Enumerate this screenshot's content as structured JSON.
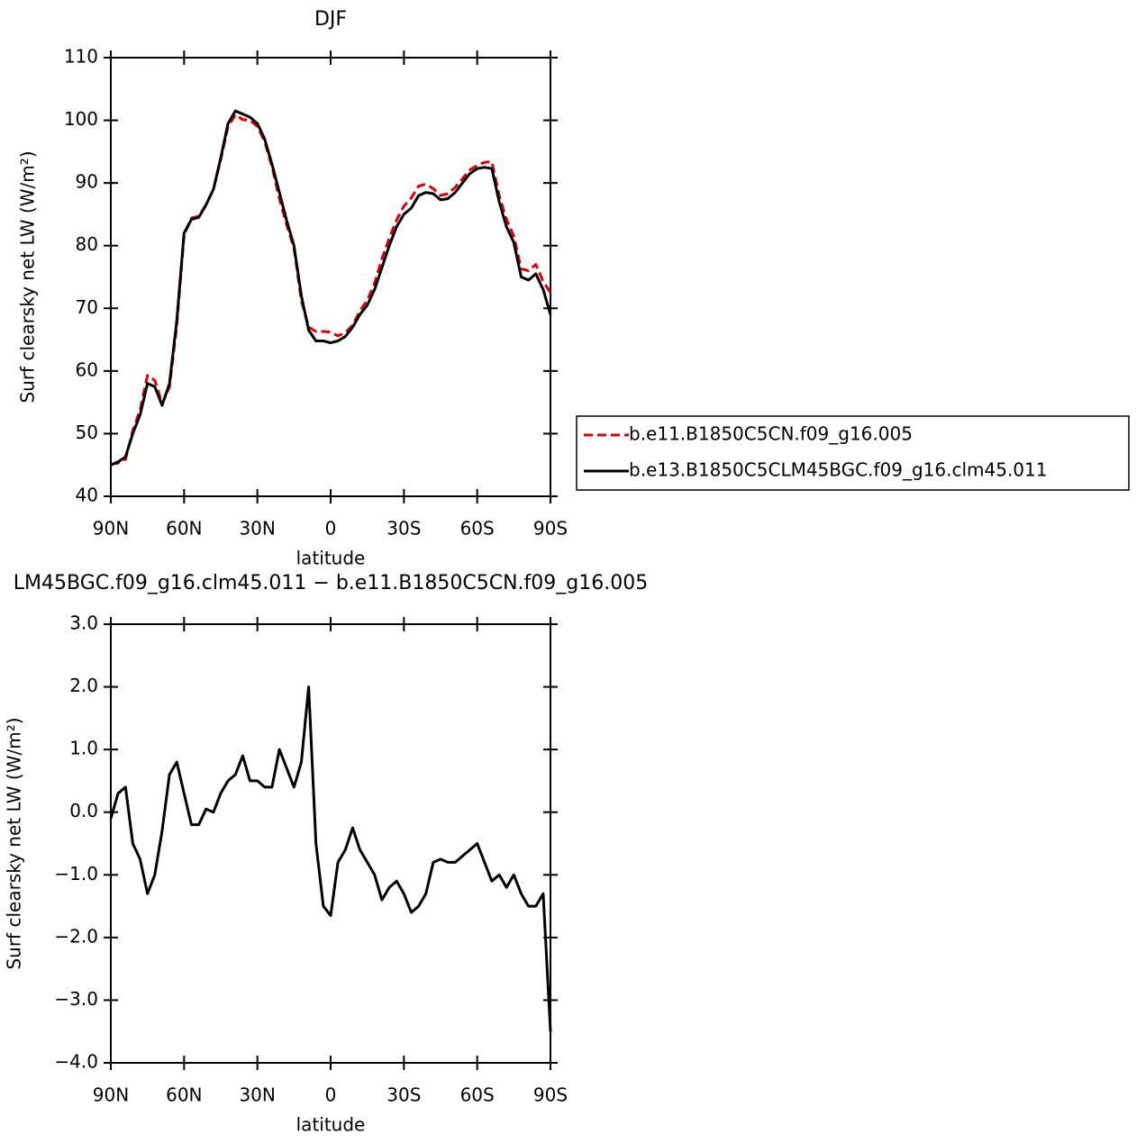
{
  "chart_data": [
    {
      "type": "line",
      "title": "DJF",
      "xlabel": "latitude",
      "ylabel": "Surf clearsky net LW (W/m²)",
      "x": [
        90,
        87,
        84,
        81,
        78,
        75,
        72,
        69,
        66,
        63,
        60,
        57,
        54,
        51,
        48,
        45,
        42,
        39,
        36,
        33,
        30,
        27,
        24,
        21,
        18,
        15,
        12,
        9,
        6,
        3,
        0,
        -3,
        -6,
        -9,
        -12,
        -15,
        -18,
        -21,
        -24,
        -27,
        -30,
        -33,
        -36,
        -39,
        -42,
        -45,
        -48,
        -51,
        -54,
        -57,
        -60,
        -63,
        -66,
        -69,
        -72,
        -75,
        -78,
        -81,
        -84,
        -87,
        -90
      ],
      "series": [
        {
          "name": "b.e11.B1850C5CN.f09_g16.005",
          "color": "#e00000",
          "dashed": true,
          "values": [
            45.1,
            45.3,
            45.9,
            50.5,
            53.8,
            59.3,
            58.5,
            54.8,
            57.4,
            67.2,
            81.7,
            84.4,
            84.7,
            86.5,
            89,
            93.7,
            99,
            100.9,
            100.1,
            100,
            99,
            96.6,
            92.6,
            87.5,
            83.3,
            79.6,
            71.2,
            67,
            66.3,
            66.3,
            66.2,
            65.6,
            66.1,
            67.3,
            69.6,
            71.3,
            74,
            77.9,
            81.2,
            84.1,
            86.3,
            87.6,
            89.5,
            89.8,
            89.1,
            88,
            88.3,
            89.3,
            90.7,
            92.1,
            92.8,
            93.3,
            93.4,
            88,
            84.2,
            81.5,
            76.3,
            76,
            77,
            74.3,
            72.5
          ]
        },
        {
          "name": "b.e13.B1850C5CLM45BGC.f09_g16.clm45.011",
          "color": "#000000",
          "dashed": false,
          "values": [
            45,
            45.5,
            46.3,
            50,
            53,
            58,
            57.5,
            54.5,
            58,
            68,
            82,
            84.2,
            84.5,
            86.5,
            89,
            94,
            99.5,
            101.5,
            101,
            100.5,
            99.5,
            97,
            93,
            88.5,
            84,
            80,
            72,
            66.5,
            64.8,
            64.8,
            64.5,
            64.8,
            65.5,
            67,
            69,
            70.5,
            73,
            76.5,
            80,
            83,
            85,
            86,
            88,
            88.5,
            88.3,
            87.3,
            87.5,
            88.5,
            90,
            91.5,
            92.3,
            92.5,
            92.3,
            87,
            83,
            80.5,
            75,
            74.5,
            75.5,
            73,
            69
          ]
        }
      ],
      "xlim": [
        90,
        -90
      ],
      "xticks": [
        {
          "value": 90,
          "label": "90N"
        },
        {
          "value": 60,
          "label": "60N"
        },
        {
          "value": 30,
          "label": "30N"
        },
        0,
        {
          "value": -30,
          "label": "30S"
        },
        {
          "value": -60,
          "label": "60S"
        },
        {
          "value": -90,
          "label": "90S"
        }
      ],
      "ylim": [
        40,
        110
      ],
      "yticks": [
        40,
        50,
        60,
        70,
        80,
        90,
        100,
        110
      ],
      "legend": "right"
    },
    {
      "type": "line",
      "title": "LM45BGC.f09_g16.clm45.011 − b.e11.B1850C5CN.f09_g16.005",
      "xlabel": "latitude",
      "ylabel": "Surf clearsky net LW (W/m²)",
      "x": [
        90,
        87,
        84,
        81,
        78,
        75,
        72,
        69,
        66,
        63,
        60,
        57,
        54,
        51,
        48,
        45,
        42,
        39,
        36,
        33,
        30,
        27,
        24,
        21,
        18,
        15,
        12,
        9,
        6,
        3,
        0,
        -3,
        -6,
        -9,
        -12,
        -15,
        -18,
        -21,
        -24,
        -27,
        -30,
        -33,
        -36,
        -39,
        -42,
        -45,
        -48,
        -51,
        -54,
        -57,
        -60,
        -63,
        -66,
        -69,
        -72,
        -75,
        -78,
        -81,
        -84,
        -87,
        -90
      ],
      "color": "#000000",
      "values": [
        -0.1,
        0.3,
        0.4,
        -0.5,
        -0.75,
        -1.3,
        -1.0,
        -0.3,
        0.6,
        0.8,
        0.3,
        -0.2,
        -0.2,
        0.05,
        0.0,
        0.3,
        0.5,
        0.6,
        0.9,
        0.5,
        0.5,
        0.4,
        0.4,
        1.0,
        0.7,
        0.4,
        0.8,
        2.0,
        -0.5,
        -1.5,
        -1.65,
        -0.8,
        -0.6,
        -0.25,
        -0.6,
        -0.8,
        -1.0,
        -1.4,
        -1.2,
        -1.1,
        -1.3,
        -1.6,
        -1.5,
        -1.3,
        -0.8,
        -0.75,
        -0.8,
        -0.8,
        -0.7,
        -0.6,
        -0.5,
        -0.8,
        -1.1,
        -1.0,
        -1.2,
        -1.0,
        -1.3,
        -1.5,
        -1.5,
        -1.3,
        -3.5
      ],
      "xlim": [
        90,
        -90
      ],
      "xticks": [
        {
          "value": 90,
          "label": "90N"
        },
        {
          "value": 60,
          "label": "60N"
        },
        {
          "value": 30,
          "label": "30N"
        },
        0,
        {
          "value": -30,
          "label": "30S"
        },
        {
          "value": -60,
          "label": "60S"
        },
        {
          "value": -90,
          "label": "90S"
        }
      ],
      "ylim": [
        -4,
        3
      ],
      "yticks": [
        {
          "value": -4,
          "label": "−4.0"
        },
        {
          "value": -3,
          "label": "−3.0"
        },
        {
          "value": -2,
          "label": "−2.0"
        },
        {
          "value": -1,
          "label": "−1.0"
        },
        {
          "value": 0,
          "label": "0.0"
        },
        {
          "value": 1,
          "label": "1.0"
        },
        {
          "value": 2,
          "label": "2.0"
        },
        {
          "value": 3,
          "label": "3.0"
        }
      ]
    }
  ]
}
